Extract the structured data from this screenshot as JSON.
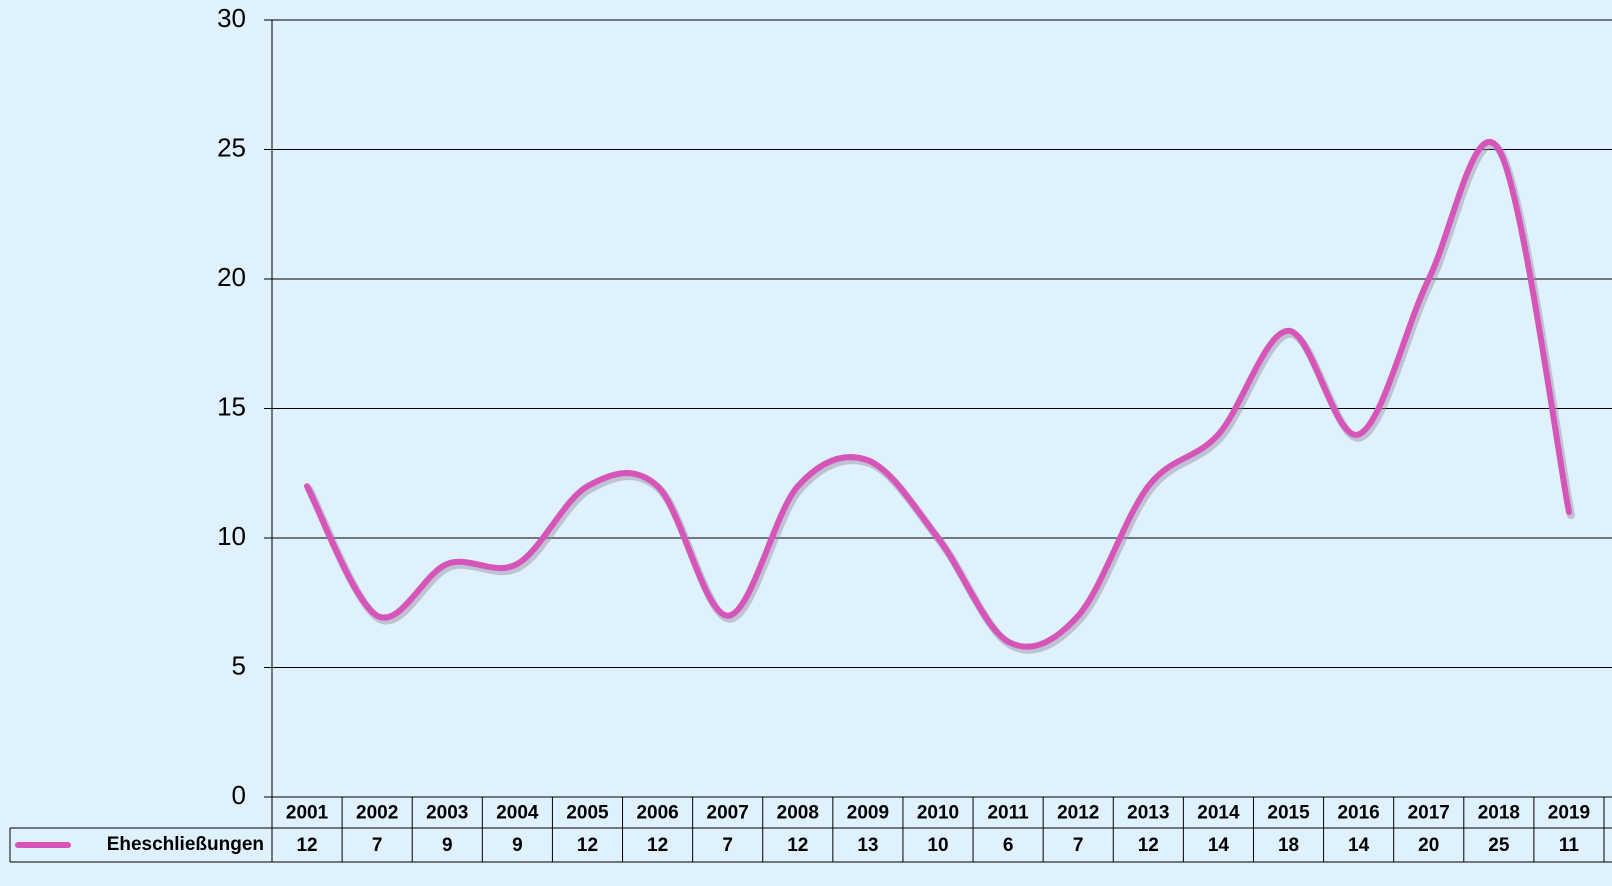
{
  "chart_data": {
    "type": "line",
    "categories": [
      "2001",
      "2002",
      "2003",
      "2004",
      "2005",
      "2006",
      "2007",
      "2008",
      "2009",
      "2010",
      "2011",
      "2012",
      "2013",
      "2014",
      "2015",
      "2016",
      "2017",
      "2018",
      "2019"
    ],
    "series": [
      {
        "name": "Eheschließungen",
        "color": "#d655b8",
        "values": [
          12,
          7,
          9,
          9,
          12,
          12,
          7,
          12,
          13,
          10,
          6,
          7,
          12,
          14,
          18,
          14,
          20,
          25,
          11
        ]
      }
    ],
    "ylim": [
      0,
      30
    ],
    "yticks": [
      0,
      5,
      10,
      15,
      20,
      25,
      30
    ],
    "grid": true,
    "smooth": true
  }
}
